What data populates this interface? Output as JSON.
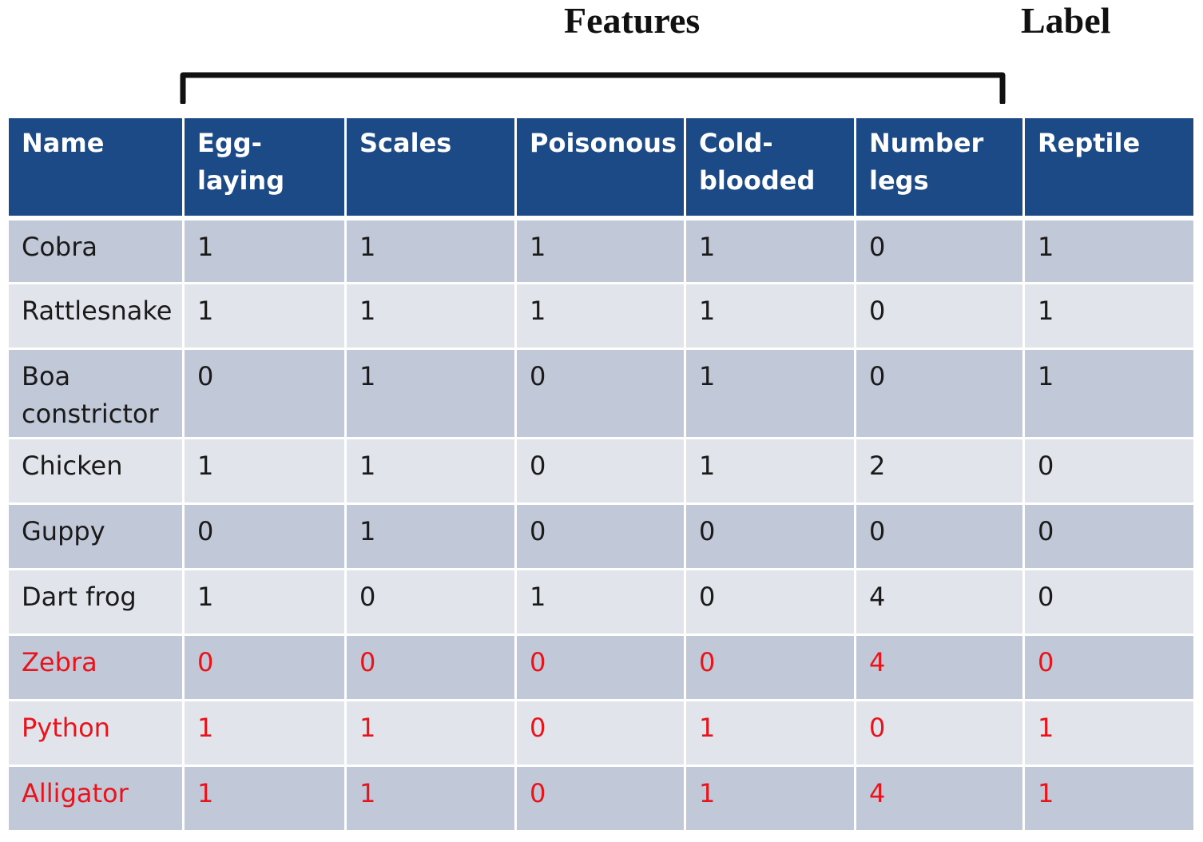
{
  "headings": {
    "features": "Features",
    "label": "Label"
  },
  "table": {
    "columns": [
      "Name",
      "Egg-laying",
      "Scales",
      "Poisonous",
      "Cold-blooded",
      "Number legs",
      "Reptile"
    ],
    "rows": [
      {
        "cells": [
          "Cobra",
          "1",
          "1",
          "1",
          "1",
          "0",
          "1"
        ],
        "highlight": false
      },
      {
        "cells": [
          "Rattlesnake",
          "1",
          "1",
          "1",
          "1",
          "0",
          "1"
        ],
        "highlight": false
      },
      {
        "cells": [
          "Boa constrictor",
          "0",
          "1",
          "0",
          "1",
          "0",
          "1"
        ],
        "highlight": false
      },
      {
        "cells": [
          "Chicken",
          "1",
          "1",
          "0",
          "1",
          "2",
          "0"
        ],
        "highlight": false
      },
      {
        "cells": [
          "Guppy",
          "0",
          "1",
          "0",
          "0",
          "0",
          "0"
        ],
        "highlight": false
      },
      {
        "cells": [
          "Dart frog",
          "1",
          "0",
          "1",
          "0",
          "4",
          "0"
        ],
        "highlight": false
      },
      {
        "cells": [
          "Zebra",
          "0",
          "0",
          "0",
          "0",
          "4",
          "0"
        ],
        "highlight": true
      },
      {
        "cells": [
          "Python",
          "1",
          "1",
          "0",
          "1",
          "0",
          "1"
        ],
        "highlight": true
      },
      {
        "cells": [
          "Alligator",
          "1",
          "1",
          "0",
          "1",
          "4",
          "1"
        ],
        "highlight": true
      }
    ]
  },
  "colors": {
    "header_bg": "#1c4a86",
    "row_dark": "#c1c8d7",
    "row_light": "#e1e4ea",
    "highlight_text": "#e8141c"
  }
}
